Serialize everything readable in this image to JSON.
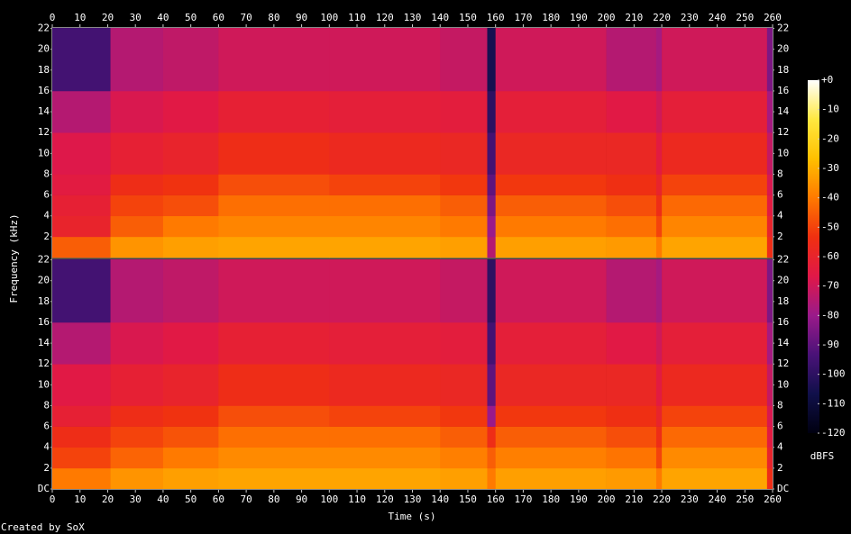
{
  "chart_data": {
    "type": "spectrogram",
    "x_label": "Time (s)",
    "y_label": "Frequency (kHz)",
    "z_label": "dBFS",
    "credit": "Created by SoX",
    "xlim": [
      0,
      260
    ],
    "xticks": [
      0,
      10,
      20,
      30,
      40,
      50,
      60,
      70,
      80,
      90,
      100,
      110,
      120,
      130,
      140,
      150,
      160,
      170,
      180,
      190,
      200,
      210,
      220,
      230,
      240,
      250,
      260
    ],
    "ylim": [
      0,
      22.05
    ],
    "time_bins": [
      0,
      21,
      40,
      60,
      100,
      140,
      157,
      160,
      200,
      218,
      220,
      258,
      260
    ],
    "frequency_bins": [
      0,
      2,
      4,
      6,
      8,
      12,
      16,
      22.05
    ],
    "channels": [
      {
        "yticks": [
          2,
          4,
          6,
          8,
          10,
          12,
          14,
          16,
          18,
          20,
          22
        ],
        "values": [
          [
            -45,
            -60,
            -62,
            -65,
            -67,
            -75,
            -95
          ],
          [
            -35,
            -45,
            -50,
            -55,
            -62,
            -68,
            -75
          ],
          [
            -33,
            -40,
            -48,
            -53,
            -60,
            -66,
            -73
          ],
          [
            -32,
            -38,
            -42,
            -48,
            -55,
            -62,
            -70
          ],
          [
            -32,
            -38,
            -42,
            -50,
            -57,
            -63,
            -70
          ],
          [
            -33,
            -40,
            -45,
            -52,
            -58,
            -64,
            -72
          ],
          [
            -75,
            -80,
            -85,
            -90,
            -95,
            -100,
            -105
          ],
          [
            -33,
            -40,
            -45,
            -52,
            -58,
            -63,
            -70
          ],
          [
            -34,
            -42,
            -48,
            -54,
            -58,
            -66,
            -75
          ],
          [
            -40,
            -50,
            -55,
            -60,
            -65,
            -70,
            -78
          ],
          [
            -32,
            -38,
            -43,
            -50,
            -57,
            -63,
            -70
          ],
          [
            -55,
            -60,
            -65,
            -68,
            -72,
            -78,
            -85
          ]
        ]
      },
      {
        "yticks": [
          {
            "value": 0,
            "label": "DC"
          },
          2,
          4,
          6,
          8,
          10,
          12,
          14,
          16,
          18,
          20,
          22
        ],
        "values": [
          [
            -40,
            -50,
            -55,
            -62,
            -66,
            -75,
            -95
          ],
          [
            -35,
            -44,
            -50,
            -55,
            -62,
            -68,
            -75
          ],
          [
            -33,
            -40,
            -47,
            -53,
            -60,
            -66,
            -73
          ],
          [
            -32,
            -37,
            -42,
            -48,
            -55,
            -62,
            -70
          ],
          [
            -32,
            -37,
            -42,
            -50,
            -57,
            -63,
            -70
          ],
          [
            -33,
            -39,
            -45,
            -52,
            -58,
            -64,
            -72
          ],
          [
            -40,
            -45,
            -55,
            -80,
            -90,
            -95,
            -100
          ],
          [
            -33,
            -39,
            -45,
            -52,
            -58,
            -63,
            -70
          ],
          [
            -34,
            -41,
            -48,
            -54,
            -58,
            -66,
            -75
          ],
          [
            -40,
            -50,
            -55,
            -60,
            -65,
            -70,
            -78
          ],
          [
            -32,
            -37,
            -43,
            -50,
            -57,
            -63,
            -70
          ],
          [
            -55,
            -60,
            -65,
            -68,
            -72,
            -78,
            -85
          ]
        ]
      }
    ],
    "zlim": [
      -120,
      0
    ],
    "zticks": [
      {
        "value": 0,
        "label": "+0"
      },
      -10,
      -20,
      -30,
      -40,
      -50,
      -60,
      -70,
      -80,
      -90,
      -100,
      -110,
      -120
    ],
    "colormap": [
      "#000010",
      "#10104a",
      "#4a1278",
      "#9a1a8a",
      "#e01848",
      "#f03010",
      "#ff7a00",
      "#ffc000",
      "#ffe840",
      "#ffffff"
    ]
  }
}
